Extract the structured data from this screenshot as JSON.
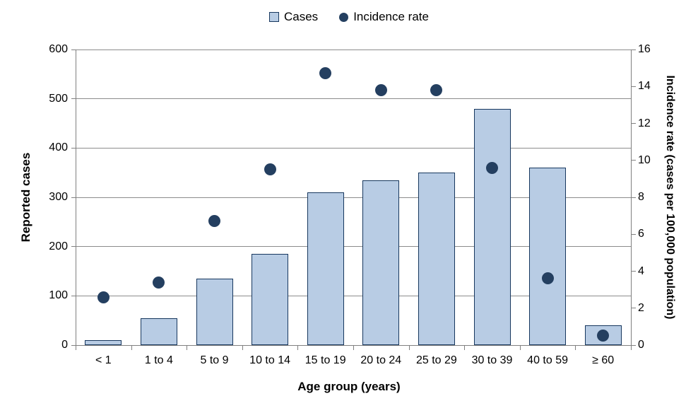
{
  "chart_data": {
    "type": "bar",
    "subtype": "combo-bar-scatter-dual-axis",
    "title": "",
    "categories": [
      "< 1",
      "1 to 4",
      "5 to 9",
      "10 to 14",
      "15 to 19",
      "20 to 24",
      "25 to 29",
      "30 to 39",
      "40 to 59",
      "≥ 60"
    ],
    "series": [
      {
        "name": "Cases",
        "type": "bar",
        "axis": "left",
        "values": [
          10,
          55,
          135,
          185,
          310,
          335,
          350,
          480,
          360,
          40
        ]
      },
      {
        "name": "Incidence rate",
        "type": "scatter",
        "axis": "right",
        "values": [
          2.6,
          3.4,
          6.7,
          9.5,
          14.7,
          13.8,
          13.8,
          9.6,
          3.6,
          0.5
        ]
      }
    ],
    "xlabel": "Age group (years)",
    "ylabel_left": "Reported cases",
    "ylabel_right": "Incidence rate (cases per 100,000 population)",
    "y_left": {
      "min": 0,
      "max": 600,
      "step": 100
    },
    "y_right": {
      "min": 0,
      "max": 16,
      "step": 2
    },
    "grid": true,
    "legend_position": "top",
    "colors": {
      "bar_fill": "#b8cce4",
      "bar_border": "#17375e",
      "dot": "#243f60",
      "gridline": "#8c8c8c",
      "axis": "#808080",
      "text": "#000000"
    }
  }
}
